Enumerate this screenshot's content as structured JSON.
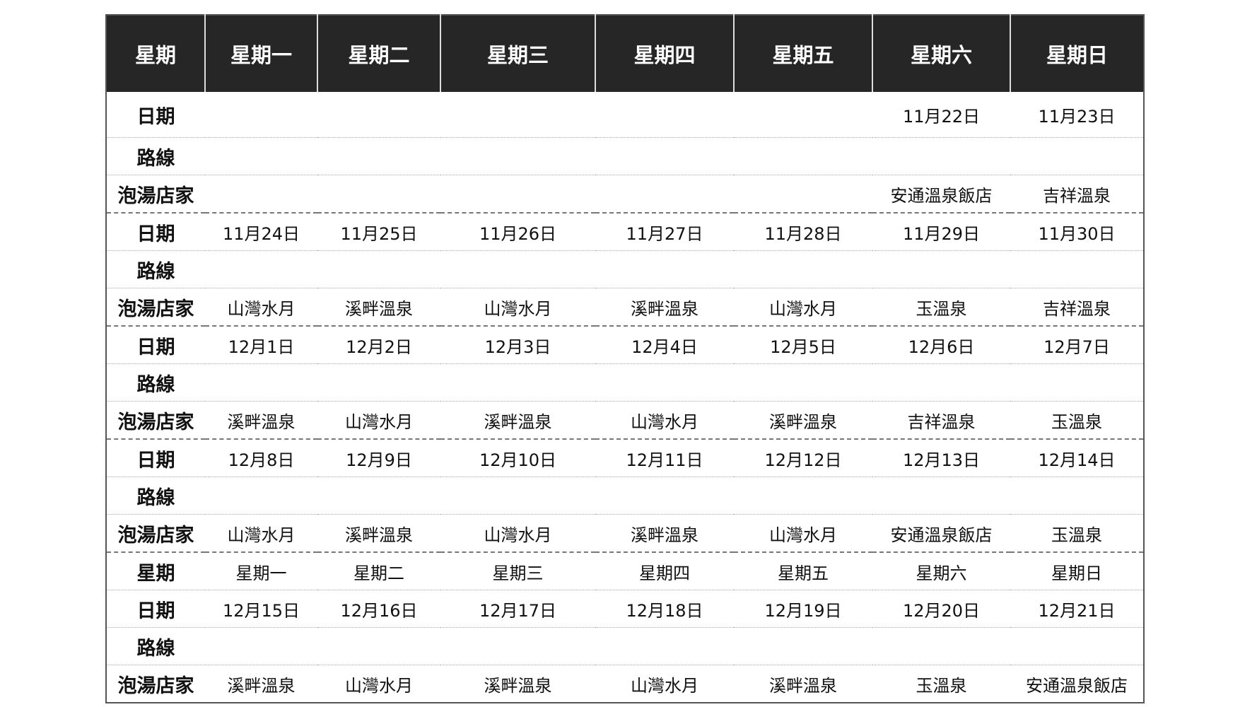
{
  "header": [
    "星期",
    "星期一",
    "星期二",
    "星期三",
    "星期四",
    "星期五",
    "星期六",
    "星期日"
  ],
  "rows": [
    {
      "label": "日期",
      "cells": [
        "",
        "",
        "",
        "",
        "",
        "11月22日",
        "11月23日"
      ]
    },
    {
      "label": "路線",
      "cells": [
        "",
        "",
        "",
        "",
        "",
        "",
        ""
      ]
    },
    {
      "label": "泡湯店家",
      "cells": [
        "",
        "",
        "",
        "",
        "",
        "安通溫泉飯店",
        "吉祥溫泉"
      ]
    },
    {
      "label": "日期",
      "cells": [
        "11月24日",
        "11月25日",
        "11月26日",
        "11月27日",
        "11月28日",
        "11月29日",
        "11月30日"
      ],
      "group": true
    },
    {
      "label": "路線",
      "cells": [
        "",
        "",
        "",
        "",
        "",
        "",
        ""
      ]
    },
    {
      "label": "泡湯店家",
      "cells": [
        "山灣水月",
        "溪畔溫泉",
        "山灣水月",
        "溪畔溫泉",
        "山灣水月",
        "玉溫泉",
        "吉祥溫泉"
      ]
    },
    {
      "label": "日期",
      "cells": [
        "12月1日",
        "12月2日",
        "12月3日",
        "12月4日",
        "12月5日",
        "12月6日",
        "12月7日"
      ],
      "group": true
    },
    {
      "label": "路線",
      "cells": [
        "",
        "",
        "",
        "",
        "",
        "",
        ""
      ]
    },
    {
      "label": "泡湯店家",
      "cells": [
        "溪畔溫泉",
        "山灣水月",
        "溪畔溫泉",
        "山灣水月",
        "溪畔溫泉",
        "吉祥溫泉",
        "玉溫泉"
      ]
    },
    {
      "label": "日期",
      "cells": [
        "12月8日",
        "12月9日",
        "12月10日",
        "12月11日",
        "12月12日",
        "12月13日",
        "12月14日"
      ],
      "group": true
    },
    {
      "label": "路線",
      "cells": [
        "",
        "",
        "",
        "",
        "",
        "",
        ""
      ]
    },
    {
      "label": "泡湯店家",
      "cells": [
        "山灣水月",
        "溪畔溫泉",
        "山灣水月",
        "溪畔溫泉",
        "山灣水月",
        "安通溫泉飯店",
        "玉溫泉"
      ]
    },
    {
      "label": "星期",
      "cells": [
        "星期一",
        "星期二",
        "星期三",
        "星期四",
        "星期五",
        "星期六",
        "星期日"
      ],
      "group": true
    },
    {
      "label": "日期",
      "cells": [
        "12月15日",
        "12月16日",
        "12月17日",
        "12月18日",
        "12月19日",
        "12月20日",
        "12月21日"
      ]
    },
    {
      "label": "路線",
      "cells": [
        "",
        "",
        "",
        "",
        "",
        "",
        ""
      ]
    },
    {
      "label": "泡湯店家",
      "cells": [
        "溪畔溫泉",
        "山灣水月",
        "溪畔溫泉",
        "山灣水月",
        "溪畔溫泉",
        "玉溫泉",
        "安通溫泉飯店"
      ]
    }
  ]
}
